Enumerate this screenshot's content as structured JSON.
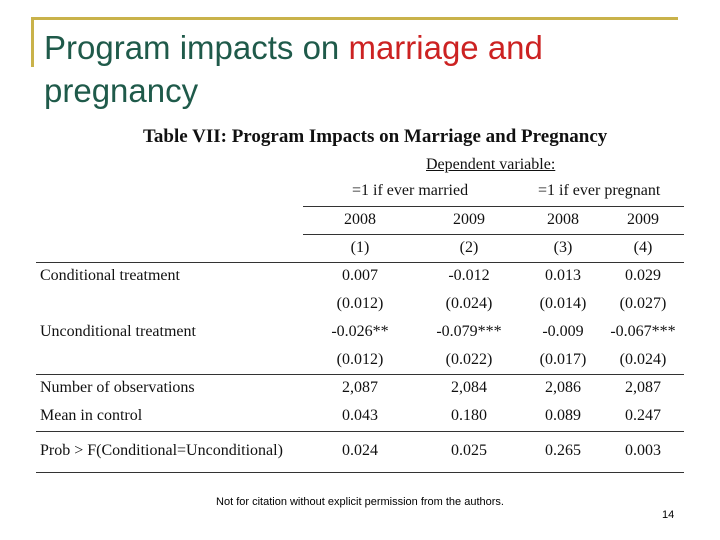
{
  "slide": {
    "title_part1": "Program impacts on ",
    "title_highlight": "marriage and",
    "title_part2": "pregnancy"
  },
  "table": {
    "title": "Table VII:  Program Impacts on Marriage and Pregnancy",
    "dependent_variable": "Dependent variable:",
    "groups": [
      "=1 if ever married",
      "=1 if ever pregnant"
    ],
    "years": [
      "2008",
      "2009",
      "2008",
      "2009"
    ],
    "col_numbers": [
      "(1)",
      "(2)",
      "(3)",
      "(4)"
    ],
    "rows": [
      {
        "label": "Conditional treatment",
        "values": [
          "0.007",
          "-0.012",
          "0.013",
          "0.029"
        ]
      },
      {
        "label": "",
        "values": [
          "(0.012)",
          "(0.024)",
          "(0.014)",
          "(0.027)"
        ]
      },
      {
        "label": "Unconditional treatment",
        "values": [
          "-0.026**",
          "-0.079***",
          "-0.009",
          "-0.067***"
        ]
      },
      {
        "label": "",
        "values": [
          "(0.012)",
          "(0.022)",
          "(0.017)",
          "(0.024)"
        ]
      },
      {
        "label": "Number of observations",
        "values": [
          "2,087",
          "2,084",
          "2,086",
          "2,087"
        ]
      },
      {
        "label": "Mean in control",
        "values": [
          "0.043",
          "0.180",
          "0.089",
          "0.247"
        ]
      },
      {
        "label": "Prob > F(Conditional=Unconditional)",
        "values": [
          "0.024",
          "0.025",
          "0.265",
          "0.003"
        ]
      }
    ]
  },
  "footer": {
    "note": "Not for citation without explicit permission from the authors.",
    "page_number": "14"
  },
  "colors": {
    "title_text": "#1f5a4a",
    "title_highlight": "#cc2222",
    "frame_accent": "#c9b24a"
  }
}
